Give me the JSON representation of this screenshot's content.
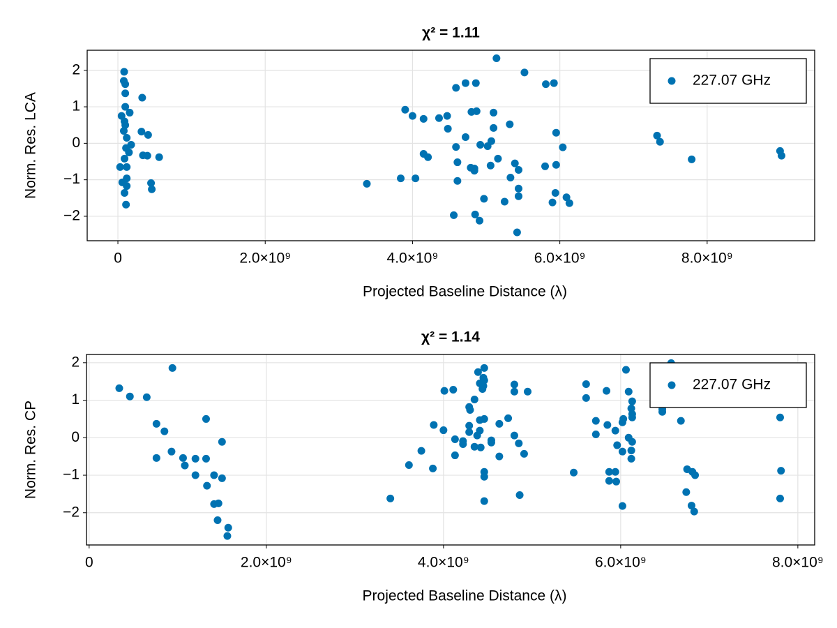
{
  "chart_data": [
    {
      "type": "scatter",
      "title": "χ² = 1.11",
      "xlabel": "Projected Baseline Distance (λ)",
      "ylabel": "Norm. Res. LCA",
      "xlim": [
        -417000000.0,
        9460000000.0
      ],
      "ylim": [
        -2.67,
        2.55
      ],
      "xticks": [
        0,
        {
          "value": 2000000000.0,
          "label": "2.0×10⁹"
        },
        {
          "value": 4000000000.0,
          "label": "4.0×10⁹"
        },
        {
          "value": 6000000000.0,
          "label": "6.0×10⁹"
        },
        {
          "value": 8000000000.0,
          "label": "8.0×10⁹"
        }
      ],
      "yticks": [
        {
          "value": -2,
          "label": "−2"
        },
        {
          "value": -1,
          "label": "−1"
        },
        0,
        1,
        2
      ],
      "grid": true,
      "legend": "upper right",
      "series": [
        {
          "name": "227.07 GHz",
          "color": "#0072b2",
          "x": [
            85000000.0,
            80000000.0,
            100000000.0,
            100000000.0,
            100000000.0,
            50000000.0,
            160000000.0,
            90000000.0,
            100000000.0,
            80000000.0,
            120000000.0,
            180000000.0,
            110000000.0,
            150000000.0,
            90000000.0,
            30000000.0,
            120000000.0,
            120000000.0,
            60000000.0,
            120000000.0,
            90000000.0,
            110000000.0,
            330000000.0,
            320000000.0,
            410000000.0,
            340000000.0,
            400000000.0,
            450000000.0,
            460000000.0,
            560000000.0,
            3380000000.0,
            3840000000.0,
            3900000000.0,
            4000000000.0,
            4040000000.0,
            4150000000.0,
            4150000000.0,
            4210000000.0,
            4360000000.0,
            4470000000.0,
            4480000000.0,
            4560000000.0,
            4590000000.0,
            4590000000.0,
            4610000000.0,
            4610000000.0,
            4720000000.0,
            4720000000.0,
            4790000000.0,
            4800000000.0,
            4840000000.0,
            4840000000.0,
            4860000000.0,
            4870000000.0,
            4850000000.0,
            4910000000.0,
            4920000000.0,
            4970000000.0,
            5020000000.0,
            5070000000.0,
            5060000000.0,
            5100000000.0,
            5100000000.0,
            5160000000.0,
            5140000000.0,
            5250000000.0,
            5320000000.0,
            5330000000.0,
            5390000000.0,
            5420000000.0,
            5440000000.0,
            5440000000.0,
            5440000000.0,
            5520000000.0,
            5810000000.0,
            5800000000.0,
            5920000000.0,
            5900000000.0,
            5940000000.0,
            5950000000.0,
            5950000000.0,
            6040000000.0,
            6090000000.0,
            6130000000.0,
            7320000000.0,
            7360000000.0,
            7790000000.0,
            8990000000.0,
            9010000000.0
          ],
          "y": [
            1.96,
            1.71,
            1.62,
            1.37,
            1.0,
            0.75,
            0.84,
            0.6,
            0.5,
            0.34,
            0.15,
            -0.04,
            -0.13,
            -0.25,
            -0.42,
            -0.65,
            -0.65,
            -0.96,
            -1.07,
            -1.17,
            -1.36,
            -1.68,
            1.25,
            0.32,
            0.23,
            -0.33,
            -0.34,
            -1.09,
            -1.26,
            -0.38,
            -1.11,
            -0.96,
            0.92,
            0.75,
            -0.96,
            0.67,
            -0.29,
            -0.38,
            0.69,
            0.75,
            0.4,
            -1.97,
            1.52,
            -0.1,
            -0.52,
            -1.03,
            0.17,
            1.65,
            -0.67,
            0.86,
            -0.75,
            -0.69,
            1.65,
            0.88,
            -1.95,
            -2.12,
            -0.04,
            -1.52,
            -0.08,
            0.06,
            -0.61,
            0.84,
            0.42,
            -0.42,
            2.33,
            -1.6,
            0.52,
            -0.94,
            -0.55,
            -2.44,
            -1.24,
            -0.73,
            -1.45,
            1.94,
            1.62,
            -0.63,
            1.65,
            -1.62,
            -1.36,
            -0.59,
            0.29,
            -0.11,
            -1.48,
            -1.64,
            0.21,
            0.04,
            -0.44,
            -0.21,
            -0.34
          ]
        }
      ]
    },
    {
      "type": "scatter",
      "title": "χ² = 1.14",
      "xlabel": "Projected Baseline Distance (λ)",
      "ylabel": "Norm. Res. CP",
      "xlim": [
        -30000000.0,
        8190000000.0
      ],
      "ylim": [
        -2.86,
        2.22
      ],
      "xticks": [
        0,
        {
          "value": 2000000000.0,
          "label": "2.0×10⁹"
        },
        {
          "value": 4000000000.0,
          "label": "4.0×10⁹"
        },
        {
          "value": 6000000000.0,
          "label": "6.0×10⁹"
        },
        {
          "value": 8000000000.0,
          "label": "8.0×10⁹"
        }
      ],
      "yticks": [
        {
          "value": -2,
          "label": "−2"
        },
        {
          "value": -1,
          "label": "−1"
        },
        0,
        1,
        2
      ],
      "grid": true,
      "legend": "upper right",
      "series": [
        {
          "name": "227.07 GHz",
          "color": "#0072b2",
          "x": [
            340000000.0,
            460000000.0,
            650000000.0,
            940000000.0,
            760000000.0,
            850000000.0,
            760000000.0,
            930000000.0,
            1060000000.0,
            1080000000.0,
            1200000000.0,
            1200000000.0,
            1320000000.0,
            1320000000.0,
            1330000000.0,
            1410000000.0,
            1410000000.0,
            1460000000.0,
            1450000000.0,
            1500000000.0,
            1500000000.0,
            1570000000.0,
            1560000000.0,
            3400000000.0,
            3610000000.0,
            3750000000.0,
            3880000000.0,
            3890000000.0,
            4000000000.0,
            4010000000.0,
            4110000000.0,
            4130000000.0,
            4130000000.0,
            4220000000.0,
            4220000000.0,
            4290000000.0,
            4290000000.0,
            4290000000.0,
            4300000000.0,
            4350000000.0,
            4350000000.0,
            4380000000.0,
            4390000000.0,
            4410000000.0,
            4410000000.0,
            4410000000.0,
            4420000000.0,
            4440000000.0,
            4450000000.0,
            4460000000.0,
            4460000000.0,
            4460000000.0,
            4460000000.0,
            4460000000.0,
            4460000000.0,
            4450000000.0,
            4540000000.0,
            4540000000.0,
            4630000000.0,
            4630000000.0,
            4730000000.0,
            4800000000.0,
            4800000000.0,
            4800000000.0,
            4850000000.0,
            4860000000.0,
            4910000000.0,
            4950000000.0,
            5470000000.0,
            5610000000.0,
            5610000000.0,
            5720000000.0,
            5720000000.0,
            5840000000.0,
            5850000000.0,
            5870000000.0,
            5870000000.0,
            5940000000.0,
            5940000000.0,
            5950000000.0,
            5960000000.0,
            6020000000.0,
            6020000000.0,
            6030000000.0,
            6020000000.0,
            6060000000.0,
            6090000000.0,
            6120000000.0,
            6130000000.0,
            6130000000.0,
            6130000000.0,
            6130000000.0,
            6120000000.0,
            6120000000.0,
            6090000000.0,
            6420000000.0,
            6570000000.0,
            6470000000.0,
            6470000000.0,
            6680000000.0,
            6750000000.0,
            6810000000.0,
            6840000000.0,
            6740000000.0,
            6800000000.0,
            6830000000.0,
            7800000000.0,
            7810000000.0,
            7800000000.0
          ],
          "y": [
            1.32,
            1.1,
            1.08,
            1.86,
            0.37,
            0.17,
            -0.54,
            -0.37,
            -0.54,
            -0.74,
            -0.56,
            -1.0,
            0.5,
            -0.56,
            -1.28,
            -1.0,
            -1.77,
            -1.75,
            -2.2,
            -0.11,
            -1.08,
            -2.4,
            -2.62,
            -1.62,
            -0.73,
            -0.35,
            -0.82,
            0.34,
            0.2,
            1.25,
            1.28,
            -0.04,
            -0.47,
            -0.09,
            -0.17,
            0.15,
            0.32,
            0.82,
            0.74,
            1.02,
            -0.24,
            0.06,
            1.75,
            1.45,
            0.19,
            0.47,
            -0.26,
            1.3,
            1.38,
            1.53,
            0.5,
            -0.91,
            -1.04,
            -1.69,
            1.86,
            1.6,
            -0.13,
            -0.07,
            0.37,
            -0.5,
            0.52,
            0.06,
            1.42,
            1.23,
            -0.15,
            -1.53,
            -0.43,
            1.23,
            -0.93,
            1.43,
            1.06,
            0.45,
            0.09,
            1.25,
            0.34,
            -0.91,
            -1.15,
            0.19,
            -0.91,
            -1.17,
            -0.2,
            -0.37,
            0.41,
            0.5,
            -1.82,
            1.81,
            1.23,
            0.78,
            0.97,
            0.63,
            0.54,
            -0.11,
            -0.34,
            -0.56,
            0,
            1.34,
            1.99,
            0.69,
            0.76,
            0.45,
            -0.84,
            -0.91,
            -1.0,
            -1.45,
            -1.81,
            -1.97,
            0.54,
            -0.88,
            -1.62
          ]
        }
      ]
    }
  ]
}
